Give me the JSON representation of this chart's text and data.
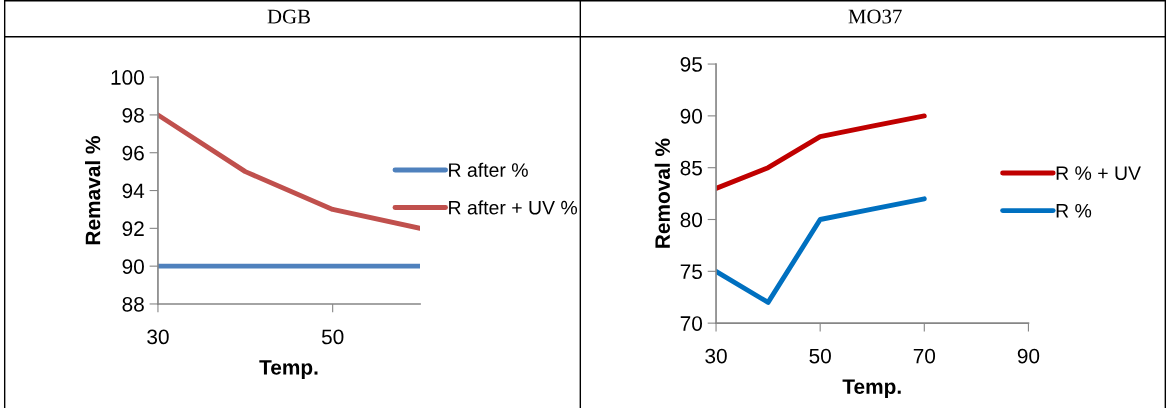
{
  "chart_data": [
    {
      "type": "line",
      "title": "DGB",
      "xlabel": "Temp.",
      "ylabel": "Remaval %",
      "x": [
        30,
        40,
        50,
        60
      ],
      "series": [
        {
          "name": "R after %",
          "color": "#4f81bd",
          "values": [
            90,
            90,
            90,
            90
          ]
        },
        {
          "name": "R after + UV %",
          "color": "#c0504d",
          "values": [
            98,
            95,
            93,
            92
          ]
        }
      ],
      "xlim": [
        30,
        60
      ],
      "xticks": [
        30,
        50
      ],
      "ylim": [
        88,
        100
      ],
      "yticks": [
        88,
        90,
        92,
        94,
        96,
        98,
        100
      ],
      "grid": false,
      "legend": "right",
      "marker": "none",
      "line_style": "solid"
    },
    {
      "type": "line",
      "title": "MO37",
      "xlabel": "Temp.",
      "ylabel": "Removal %",
      "x": [
        30,
        40,
        50,
        60,
        70
      ],
      "series": [
        {
          "name": "R % + UV",
          "color": "#c00000",
          "values": [
            83,
            85,
            88,
            89,
            90
          ]
        },
        {
          "name": "R %",
          "color": "#0070c0",
          "values": [
            75,
            72,
            80,
            81,
            82
          ]
        }
      ],
      "xlim": [
        30,
        90
      ],
      "xticks": [
        30,
        50,
        70,
        90
      ],
      "ylim": [
        70,
        95
      ],
      "yticks": [
        70,
        75,
        80,
        85,
        90,
        95
      ],
      "grid": false,
      "legend": "right",
      "marker": "none",
      "line_style": "solid"
    }
  ]
}
